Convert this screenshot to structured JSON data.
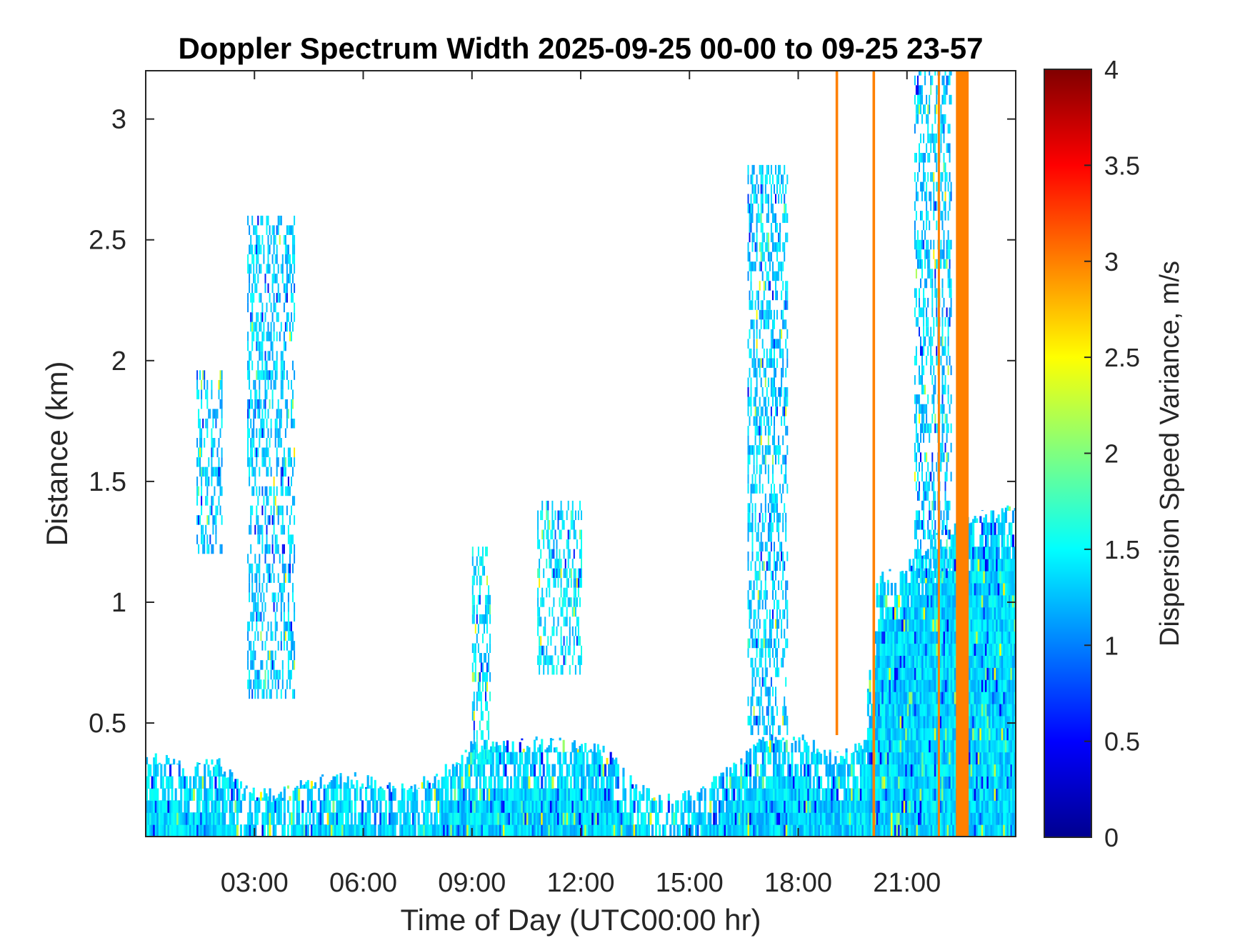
{
  "chart_data": {
    "type": "heatmap",
    "title": "Doppler Spectrum Width 2025-09-25 00-00 to 09-25 23-57",
    "xlabel": "Time of Day (UTC00:00 hr)",
    "ylabel": "Distance (km)",
    "colorbar_label": "Dispersion Speed Variance, m/s",
    "colormap": "jet",
    "xlim_hours": [
      0,
      24
    ],
    "ylim_km": [
      0.03,
      3.2
    ],
    "clim": [
      0,
      4
    ],
    "x_ticks": [
      {
        "value": 3,
        "label": "03:00"
      },
      {
        "value": 6,
        "label": "06:00"
      },
      {
        "value": 9,
        "label": "09:00"
      },
      {
        "value": 12,
        "label": "12:00"
      },
      {
        "value": 15,
        "label": "15:00"
      },
      {
        "value": 18,
        "label": "18:00"
      },
      {
        "value": 21,
        "label": "21:00"
      }
    ],
    "y_ticks": [
      {
        "value": 0.5,
        "label": "0.5"
      },
      {
        "value": 1,
        "label": "1"
      },
      {
        "value": 1.5,
        "label": "1.5"
      },
      {
        "value": 2,
        "label": "2"
      },
      {
        "value": 2.5,
        "label": "2.5"
      },
      {
        "value": 3,
        "label": "3"
      }
    ],
    "colorbar_ticks": [
      {
        "value": 0,
        "label": "0"
      },
      {
        "value": 0.5,
        "label": "0.5"
      },
      {
        "value": 1,
        "label": "1"
      },
      {
        "value": 1.5,
        "label": "1.5"
      },
      {
        "value": 2,
        "label": "2"
      },
      {
        "value": 2.5,
        "label": "2.5"
      },
      {
        "value": 3,
        "label": "3"
      },
      {
        "value": 3.5,
        "label": "3.5"
      },
      {
        "value": 4,
        "label": "4"
      }
    ],
    "boundary_layer_top_km": [
      [
        0.0,
        0.35
      ],
      [
        1.0,
        0.34
      ],
      [
        2.0,
        0.33
      ],
      [
        2.8,
        0.22
      ],
      [
        3.5,
        0.2
      ],
      [
        4.5,
        0.25
      ],
      [
        5.5,
        0.28
      ],
      [
        7.0,
        0.22
      ],
      [
        8.0,
        0.28
      ],
      [
        9.0,
        0.4
      ],
      [
        10.0,
        0.4
      ],
      [
        11.0,
        0.42
      ],
      [
        12.0,
        0.4
      ],
      [
        12.8,
        0.38
      ],
      [
        13.5,
        0.25
      ],
      [
        14.3,
        0.18
      ],
      [
        15.0,
        0.2
      ],
      [
        16.0,
        0.3
      ],
      [
        17.0,
        0.42
      ],
      [
        18.0,
        0.45
      ],
      [
        19.0,
        0.35
      ],
      [
        19.8,
        0.4
      ],
      [
        20.2,
        1.1
      ],
      [
        21.0,
        1.15
      ],
      [
        22.0,
        1.3
      ],
      [
        23.0,
        1.35
      ],
      [
        24.0,
        1.4
      ]
    ],
    "plume_regions": [
      {
        "t_start": 1.4,
        "t_end": 2.1,
        "z_bottom_km": 1.2,
        "z_top_km": 1.95,
        "value_ms": 1.3
      },
      {
        "t_start": 2.8,
        "t_end": 4.1,
        "z_bottom_km": 0.6,
        "z_top_km": 2.6,
        "value_ms": 1.3
      },
      {
        "t_start": 9.0,
        "t_end": 9.5,
        "z_bottom_km": 0.35,
        "z_top_km": 1.2,
        "value_ms": 1.4
      },
      {
        "t_start": 10.8,
        "t_end": 12.0,
        "z_bottom_km": 0.7,
        "z_top_km": 1.4,
        "value_ms": 1.4
      },
      {
        "t_start": 16.6,
        "t_end": 17.7,
        "z_bottom_km": 0.45,
        "z_top_km": 2.8,
        "value_ms": 1.3
      },
      {
        "t_start": 21.2,
        "t_end": 22.2,
        "z_bottom_km": 1.1,
        "z_top_km": 3.2,
        "value_ms": 1.3
      }
    ],
    "saturated_columns": [
      {
        "t_start": 19.03,
        "t_end": 19.1,
        "value_ms": 3.0,
        "z_bottom_km": 0.45,
        "z_top_km": 3.2
      },
      {
        "t_start": 20.05,
        "t_end": 20.12,
        "value_ms": 3.0,
        "z_bottom_km": 0.03,
        "z_top_km": 3.2
      },
      {
        "t_start": 21.85,
        "t_end": 21.9,
        "value_ms": 3.0,
        "z_bottom_km": 0.03,
        "z_top_km": 3.2
      },
      {
        "t_start": 22.35,
        "t_end": 22.7,
        "value_ms": 3.0,
        "z_bottom_km": 0.03,
        "z_top_km": 3.2
      }
    ]
  }
}
